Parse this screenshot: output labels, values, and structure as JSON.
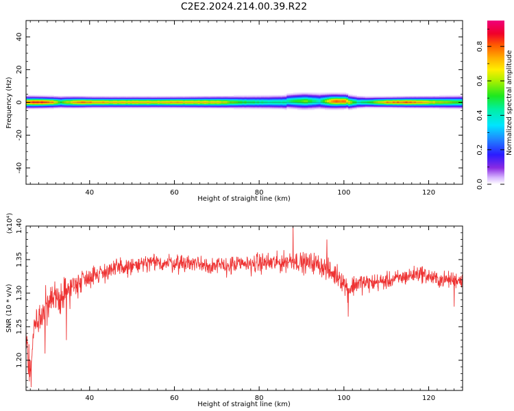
{
  "title": "C2E2.2024.214.00.39.R22",
  "chart_data": [
    {
      "type": "heatmap",
      "title": "",
      "xlabel": "Height of straight line (km)",
      "ylabel": "Frequency (Hz)",
      "xlim": [
        25,
        128
      ],
      "ylim": [
        -50,
        50
      ],
      "x_ticks": [
        40,
        60,
        80,
        100,
        120
      ],
      "y_ticks": [
        40,
        20,
        0,
        -20,
        -40
      ],
      "x_tick_labels": [
        "40",
        "60",
        "80",
        "100",
        "120"
      ],
      "y_tick_labels": [
        "40",
        "20",
        "0",
        "-20",
        "-40"
      ],
      "colorbar": {
        "label": "Normalized spectral amplitude",
        "range": [
          0,
          0.95
        ],
        "ticks": [
          0.0,
          0.2,
          0.4,
          0.6,
          0.8
        ],
        "tick_labels": [
          "0.0",
          "0.2",
          "0.4",
          "0.6",
          "0.8"
        ],
        "colormap": "rainbow (white-purple-blue-cyan-green-yellow-orange-red-magenta)"
      },
      "band_width_hz": [
        [
          25,
          3.2
        ],
        [
          30,
          3.0
        ],
        [
          35,
          3.0
        ],
        [
          40,
          2.8
        ],
        [
          50,
          2.8
        ],
        [
          60,
          2.8
        ],
        [
          70,
          3.0
        ],
        [
          80,
          3.3
        ],
        [
          85,
          3.5
        ],
        [
          90,
          4.2
        ],
        [
          95,
          4.0
        ],
        [
          100,
          3.8
        ],
        [
          105,
          2.8
        ],
        [
          110,
          2.7
        ],
        [
          120,
          3.0
        ],
        [
          128,
          3.3
        ]
      ],
      "peak_amplitude": [
        [
          25,
          0.82
        ],
        [
          28,
          0.88
        ],
        [
          31,
          0.78
        ],
        [
          33,
          0.55
        ],
        [
          37,
          0.8
        ],
        [
          40,
          0.78
        ],
        [
          45,
          0.72
        ],
        [
          50,
          0.74
        ],
        [
          55,
          0.72
        ],
        [
          60,
          0.75
        ],
        [
          65,
          0.72
        ],
        [
          70,
          0.7
        ],
        [
          75,
          0.55
        ],
        [
          80,
          0.48
        ],
        [
          85,
          0.45
        ],
        [
          88,
          0.52
        ],
        [
          91,
          0.58
        ],
        [
          94,
          0.42
        ],
        [
          97,
          0.82
        ],
        [
          100,
          0.8
        ],
        [
          103,
          0.45
        ],
        [
          107,
          0.6
        ],
        [
          110,
          0.78
        ],
        [
          115,
          0.82
        ],
        [
          120,
          0.7
        ],
        [
          125,
          0.6
        ],
        [
          128,
          0.55
        ]
      ]
    },
    {
      "type": "line",
      "title": "",
      "xlabel": "Height of straight line (km)",
      "ylabel": "SNR (10 * v/v)",
      "y_multiplier": "(x10⁴)",
      "xlim": [
        25,
        128
      ],
      "ylim": [
        1.155,
        1.4
      ],
      "x_ticks": [
        40,
        60,
        80,
        100,
        120
      ],
      "y_ticks": [
        1.2,
        1.25,
        1.3,
        1.35,
        1.4
      ],
      "x_tick_labels": [
        "40",
        "60",
        "80",
        "100",
        "120"
      ],
      "y_tick_labels": [
        "1.20",
        "1.25",
        "1.30",
        "1.35",
        "1.40"
      ],
      "color": "#ee3333",
      "trend": [
        [
          25,
          1.24
        ],
        [
          26,
          1.18
        ],
        [
          27,
          1.255
        ],
        [
          28,
          1.26
        ],
        [
          30,
          1.28
        ],
        [
          32,
          1.29
        ],
        [
          34,
          1.3
        ],
        [
          36,
          1.31
        ],
        [
          38,
          1.32
        ],
        [
          40,
          1.325
        ],
        [
          45,
          1.335
        ],
        [
          50,
          1.34
        ],
        [
          55,
          1.345
        ],
        [
          60,
          1.345
        ],
        [
          65,
          1.345
        ],
        [
          70,
          1.34
        ],
        [
          75,
          1.342
        ],
        [
          80,
          1.345
        ],
        [
          85,
          1.345
        ],
        [
          88,
          1.35
        ],
        [
          90,
          1.345
        ],
        [
          93,
          1.345
        ],
        [
          95,
          1.34
        ],
        [
          97,
          1.33
        ],
        [
          99,
          1.325
        ],
        [
          101,
          1.305
        ],
        [
          103,
          1.315
        ],
        [
          106,
          1.315
        ],
        [
          110,
          1.318
        ],
        [
          115,
          1.325
        ],
        [
          118,
          1.33
        ],
        [
          122,
          1.32
        ],
        [
          126,
          1.32
        ],
        [
          128,
          1.32
        ]
      ],
      "noise_amplitude": [
        [
          25,
          0.035
        ],
        [
          30,
          0.04
        ],
        [
          35,
          0.035
        ],
        [
          40,
          0.022
        ],
        [
          60,
          0.02
        ],
        [
          80,
          0.022
        ],
        [
          90,
          0.022
        ],
        [
          100,
          0.025
        ],
        [
          110,
          0.018
        ],
        [
          128,
          0.018
        ]
      ],
      "spikes": [
        [
          26.2,
          1.16
        ],
        [
          29.5,
          1.21
        ],
        [
          34.5,
          1.23
        ],
        [
          88,
          1.4
        ],
        [
          96,
          1.38
        ],
        [
          101,
          1.265
        ],
        [
          126,
          1.28
        ]
      ]
    }
  ]
}
